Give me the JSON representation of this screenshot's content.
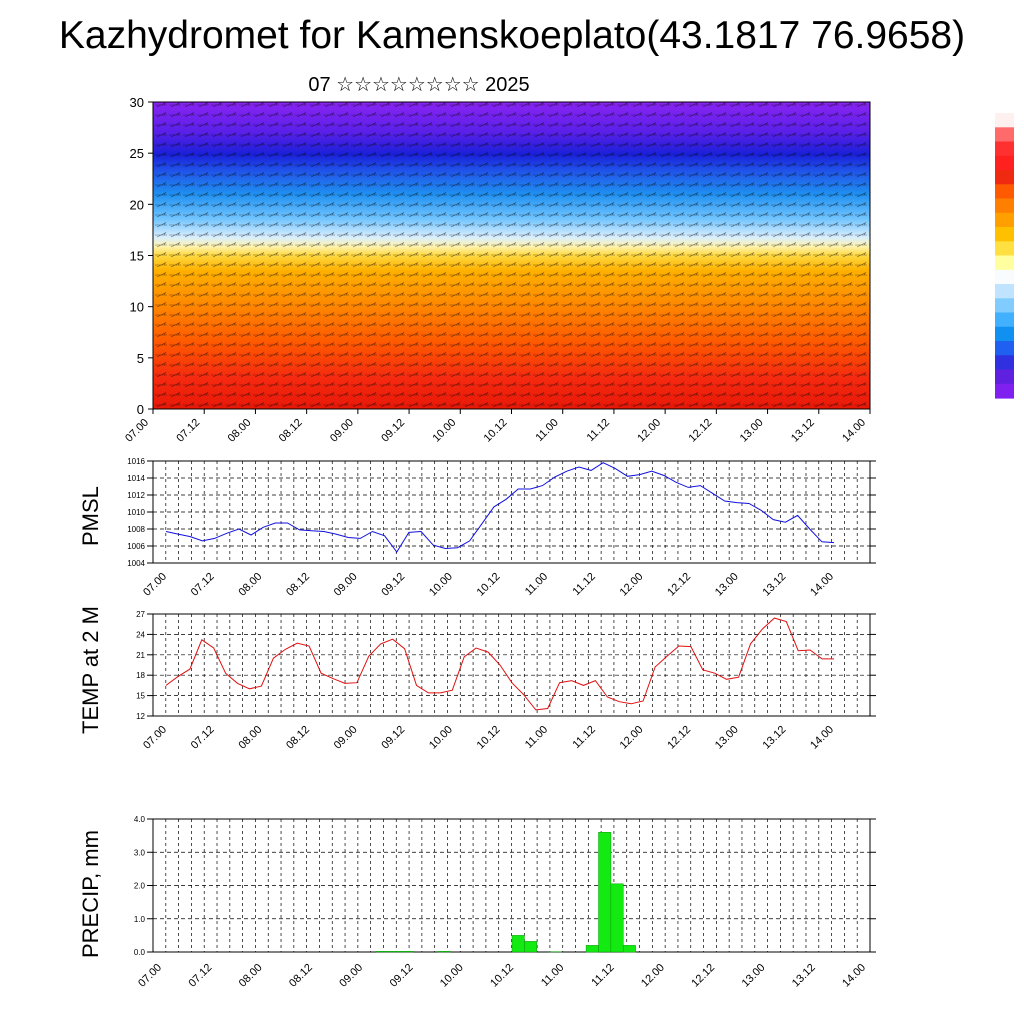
{
  "header": {
    "title": "Kazhydromet for Kamenskoeplato(43.1817 76.9658)",
    "subtitle": "07 ☆☆☆☆☆☆☆☆ 2025"
  },
  "colors": {
    "pmsl_line": "#1010e0",
    "temp_line": "#e01010",
    "precip_bar": "#12ea12",
    "colorbar": [
      "#fff0f0",
      "#ff6a6a",
      "#ff3030",
      "#ff2020",
      "#f02a10",
      "#ff5a00",
      "#ff8000",
      "#ffa000",
      "#ffc000",
      "#ffe040",
      "#ffffa0",
      "#f8fcff",
      "#c0e4ff",
      "#80ccff",
      "#40b0ff",
      "#1090f0",
      "#2060f0",
      "#3030e0",
      "#6020e0",
      "#8020f0"
    ]
  },
  "time_ticks": [
    "07.00",
    "07.12",
    "08.00",
    "08.12",
    "09.00",
    "09.12",
    "10.00",
    "10.12",
    "11.00",
    "11.12",
    "12.00",
    "12.12",
    "13.00",
    "13.12",
    "14.00"
  ],
  "chart_data": [
    {
      "type": "heatmap",
      "title": "",
      "xlabel": "",
      "ylabel": "",
      "ylim": [
        0,
        30
      ],
      "y_ticks": [
        0,
        5,
        10,
        15,
        20,
        25,
        30
      ],
      "x_categories": [
        "07.00",
        "07.12",
        "08.00",
        "08.12",
        "09.00",
        "09.12",
        "10.00",
        "10.12",
        "11.00",
        "11.12",
        "12.00",
        "12.12",
        "13.00",
        "13.12",
        "14.00"
      ],
      "description_bands": [
        {
          "from": 0,
          "to": 5,
          "color": "#f02010"
        },
        {
          "from": 5,
          "to": 10,
          "color": "#ff6000"
        },
        {
          "from": 10,
          "to": 15,
          "color": "#ffa000"
        },
        {
          "from": 15,
          "to": 17,
          "color": "#fff0a0"
        },
        {
          "from": 17,
          "to": 22,
          "color": "#60b8ff"
        },
        {
          "from": 22,
          "to": 26,
          "color": "#2030e0"
        },
        {
          "from": 26,
          "to": 30,
          "color": "#8020f0"
        }
      ]
    },
    {
      "type": "line",
      "ylabel": "PMSL",
      "ylim": [
        1004,
        1016
      ],
      "y_ticks": [
        1004,
        1006,
        1008,
        1010,
        1012,
        1014,
        1016
      ],
      "series": [
        {
          "values": [
            1007.7,
            1007.4,
            1007.1,
            1006.6,
            1006.9,
            1007.5,
            1008.0,
            1007.3,
            1008.2,
            1008.7,
            1008.7,
            1007.9,
            1007.8,
            1007.7,
            1007.4,
            1007.0,
            1006.9,
            1007.7,
            1007.2,
            1005.3,
            1007.6,
            1007.7,
            1006.1,
            1005.7,
            1005.8,
            1006.6,
            1008.6,
            1010.6,
            1011.5,
            1012.7,
            1012.7,
            1013.1,
            1014.1,
            1014.8,
            1015.3,
            1014.9,
            1015.8,
            1015.1,
            1014.2,
            1014.4,
            1014.8,
            1014.3,
            1013.5,
            1012.9,
            1013.1,
            1012.2,
            1011.3,
            1011.1,
            1011.0,
            1010.2,
            1009.1,
            1008.8,
            1009.6,
            1008.0,
            1006.5,
            1006.4
          ]
        }
      ]
    },
    {
      "type": "line",
      "ylabel": "TEMP at 2 M",
      "ylim": [
        12,
        27
      ],
      "y_ticks": [
        12,
        15,
        18,
        21,
        24,
        27
      ],
      "series": [
        {
          "values": [
            16.5,
            17.8,
            18.9,
            23.2,
            22.0,
            18.3,
            16.8,
            16.0,
            16.4,
            20.5,
            21.8,
            22.7,
            22.3,
            18.3,
            17.5,
            16.8,
            16.9,
            20.8,
            22.6,
            23.3,
            21.9,
            16.5,
            15.4,
            15.4,
            15.8,
            20.7,
            22.0,
            21.4,
            19.5,
            16.9,
            15.1,
            12.9,
            13.1,
            16.9,
            17.2,
            16.5,
            17.2,
            14.8,
            14.1,
            13.8,
            14.2,
            19.2,
            20.8,
            22.3,
            22.2,
            18.8,
            18.3,
            17.4,
            17.7,
            22.6,
            24.8,
            26.4,
            25.9,
            21.6,
            21.7,
            20.4,
            20.4
          ]
        }
      ]
    },
    {
      "type": "bar",
      "ylabel": "PRECIP, mm",
      "ylim": [
        0,
        4
      ],
      "y_ticks": [
        "0.0",
        "1.0",
        "2.0",
        "3.0",
        "4.0"
      ],
      "values": [
        0,
        0,
        0,
        0,
        0,
        0,
        0,
        0,
        0,
        0,
        0,
        0,
        0,
        0,
        0,
        0,
        0,
        0.02,
        0.02,
        0.02,
        0,
        0,
        0.02,
        0,
        0,
        0,
        0,
        0,
        0.5,
        0.32,
        0,
        0.01,
        0,
        0,
        0.2,
        3.6,
        2.05,
        0.2,
        0,
        0,
        0,
        0,
        0,
        0,
        0,
        0,
        0,
        0,
        0,
        0,
        0,
        0,
        0,
        0,
        0,
        0
      ]
    }
  ]
}
